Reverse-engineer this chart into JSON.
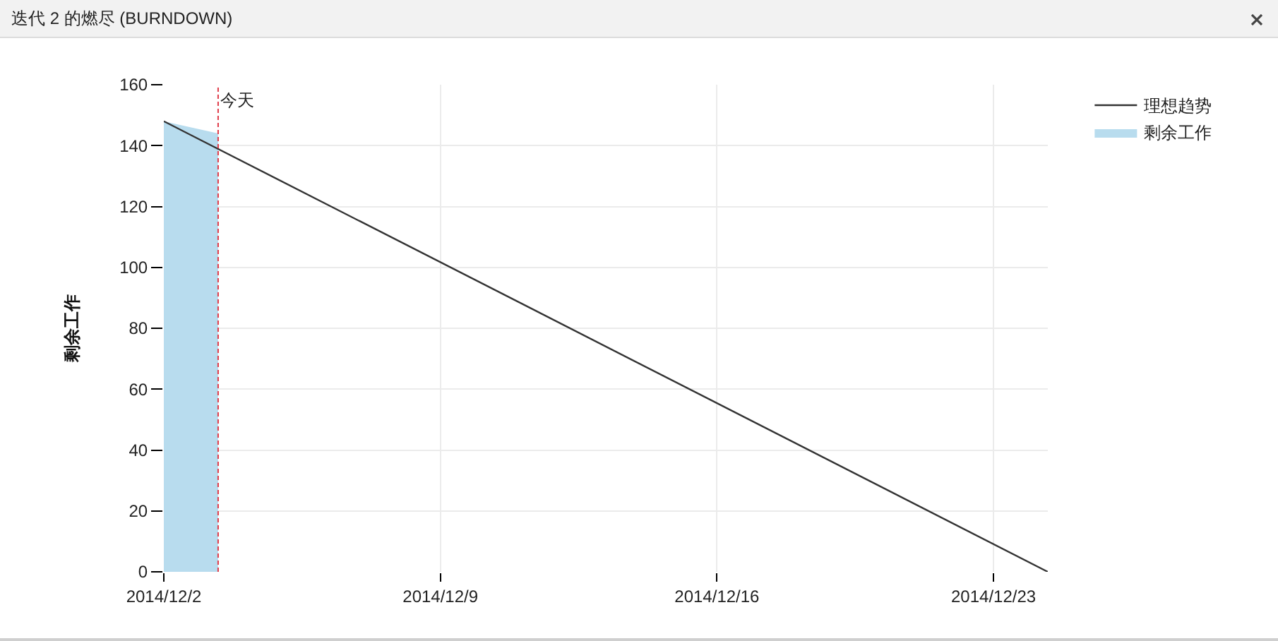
{
  "chart_data": {
    "type": "line",
    "title": "迭代 2 的燃尽 (BURNDOWN)",
    "ylabel": "剩余工作",
    "series": [
      {
        "name": "理想趋势",
        "color": "#333333",
        "x": [
          "2014-12-02",
          "2014-12-24T09:00"
        ],
        "values": [
          148,
          0
        ]
      },
      {
        "name": "剩余工作",
        "type": "area",
        "color": "#b8dcee",
        "x": [
          "2014-12-02",
          "2014-12-03T09:00"
        ],
        "values": [
          148,
          144
        ]
      }
    ],
    "xlim": [
      "2014-12-02",
      "2014-12-24T09:00"
    ],
    "xticks": [
      {
        "value": "2014-12-02",
        "label": "2014/12/2"
      },
      {
        "value": "2014-12-09",
        "label": "2014/12/9"
      },
      {
        "value": "2014-12-16",
        "label": "2014/12/16"
      },
      {
        "value": "2014-12-23",
        "label": "2014/12/23"
      }
    ],
    "ylim": [
      0,
      160
    ],
    "yticks": [
      0,
      20,
      40,
      60,
      80,
      100,
      120,
      140,
      160
    ],
    "grid": true,
    "legend": "top right",
    "ref_lines": [
      {
        "axis": "x",
        "value": "2014-12-03T09:00",
        "label": "今天",
        "color": "#e03c4a",
        "line_style": "dashed"
      }
    ]
  }
}
